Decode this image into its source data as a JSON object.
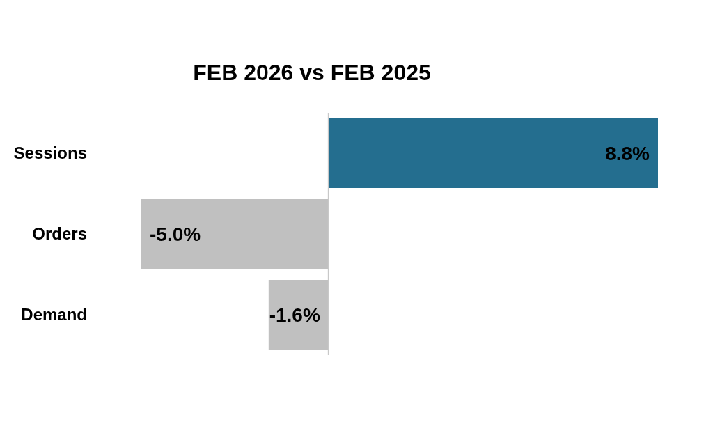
{
  "chart_data": {
    "type": "bar",
    "orientation": "horizontal",
    "title": "FEB 2026 vs FEB 2025",
    "categories": [
      "Sessions",
      "Orders",
      "Demand"
    ],
    "values": [
      8.8,
      -5.0,
      -1.6
    ],
    "colors": [
      "#246e8f",
      "#c0c0c0",
      "#c0c0c0"
    ],
    "value_labels": [
      "8.8%",
      "-5.0%",
      "-1.6%"
    ],
    "ref_lines": [
      {
        "axis": "x",
        "value": 0,
        "color": "#c8c8c8"
      }
    ],
    "grid": false,
    "legend": false
  }
}
